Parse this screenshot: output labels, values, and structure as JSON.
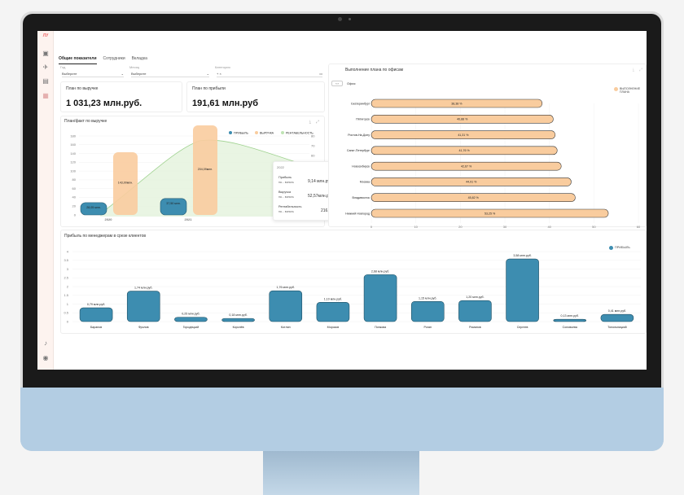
{
  "nav": {
    "logo": "ЛУ"
  },
  "tabs": [
    "Общие показатели",
    "Сотрудники",
    "Вкладка"
  ],
  "filters": [
    {
      "label": "Год",
      "value": "Выберите"
    },
    {
      "label": "Месяц",
      "value": "Выберите"
    },
    {
      "label": "Категория",
      "value": "+    ×"
    }
  ],
  "kpi": [
    {
      "title": "План по выручке",
      "value": "1 031,23 млн.руб."
    },
    {
      "title": "План по прибыли",
      "value": "191,61 млн.руб"
    }
  ],
  "plan_fact": {
    "title": "План/факт по выручке",
    "legend": [
      "ПРИБЫЛЬ",
      "ВЫРУЧКА",
      "РЕНТАБЕЛЬНОСТЬ"
    ],
    "bar_labels": [
      "28,05 млн.",
      "143,00млн.",
      "37,50 млн.",
      "204,09млн."
    ],
    "tooltip": {
      "year": "2022",
      "rows": [
        {
          "name": "Прибыль",
          "sub": "на... вонкль",
          "value": "9,14 млн.руб."
        },
        {
          "name": "Выручка",
          "sub": "на... вонкль",
          "value": "52,57млн.руб."
        },
        {
          "name": "Рентабельность",
          "sub": "на... вонкль",
          "value": "216,53"
        }
      ]
    }
  },
  "offices": {
    "title": "Выполнение плана по офисам",
    "filter_label": "Офис",
    "legend": "ВЫПОЛНЕНИЕ ПЛАНА",
    "icons_label": "‹ ›"
  },
  "managers": {
    "title": "Прибыль по менеджерам в срезе клиентов",
    "legend": "ПРИБЫЛЬ"
  },
  "colors": {
    "teal": "#3d8db0",
    "peach": "#f9cc9e",
    "green": "#bfe3b4",
    "sidebar": "#fdf3ef"
  },
  "chart_data": [
    {
      "type": "bar",
      "title": "План/факт по выручке",
      "categories": [
        "2020",
        "2021"
      ],
      "series": [
        {
          "name": "ПРИБЫЛЬ",
          "values": [
            28.05,
            37.5
          ]
        },
        {
          "name": "ВЫРУЧКА",
          "values": [
            143.0,
            204.09
          ]
        }
      ],
      "yticks": [
        0,
        20,
        40,
        60,
        80,
        100,
        120,
        140,
        160,
        180
      ],
      "y2ticks": [
        0,
        10,
        20,
        30,
        40,
        50,
        60,
        70,
        80
      ],
      "ylim": [
        0,
        180
      ]
    },
    {
      "type": "bar",
      "orientation": "horizontal",
      "title": "Выполнение плана по офисам",
      "categories": [
        "Екатеринбург",
        "Пятигорск",
        "Ростов-На-Дону",
        "Санкт-Петербург",
        "Новосибирск",
        "Москва",
        "Владивосток",
        "Нижний Новгород"
      ],
      "values": [
        38.38,
        40.88,
        41.31,
        41.76,
        42.67,
        44.91,
        45.82,
        53.25
      ],
      "value_labels": [
        "38,38 %",
        "40,88 %",
        "41,31 %",
        "41,76 %",
        "42,67 %",
        "44,91 %",
        "45,82 %",
        "53,25 %"
      ],
      "xticks": [
        0,
        10,
        20,
        30,
        40,
        50,
        60
      ],
      "xlim": [
        0,
        60
      ]
    },
    {
      "type": "bar",
      "title": "Прибыль по менеджерам в срезе клиентов",
      "categories": [
        "Баранов",
        "Фролов",
        "Городецкий",
        "Королёв",
        "Котлин",
        "Морозов",
        "Попкова",
        "Роган",
        "Романов",
        "Сергеев",
        "Соловьева",
        "Топольницкий"
      ],
      "values": [
        0.79,
        1.74,
        0.25,
        0.18,
        1.76,
        1.1,
        2.68,
        1.15,
        1.2,
        3.58,
        0.13,
        0.41
      ],
      "value_labels": [
        "0,79 млн.руб.",
        "1,74 млн.руб.",
        "0,25 млн.руб.",
        "0,18 млн.руб.",
        "1,76 млн.руб.",
        "1,10 млн.руб.",
        "2,68 млн.руб.",
        "1,15 млн.руб.",
        "1,20 млн.руб.",
        "3,58 млн.руб.",
        "0,13 млн.руб.",
        "0,41 млн.руб."
      ],
      "yticks": [
        0,
        0.5,
        1,
        1.5,
        2,
        2.5,
        3,
        3.5,
        4
      ],
      "ylim": [
        0,
        4
      ]
    }
  ]
}
